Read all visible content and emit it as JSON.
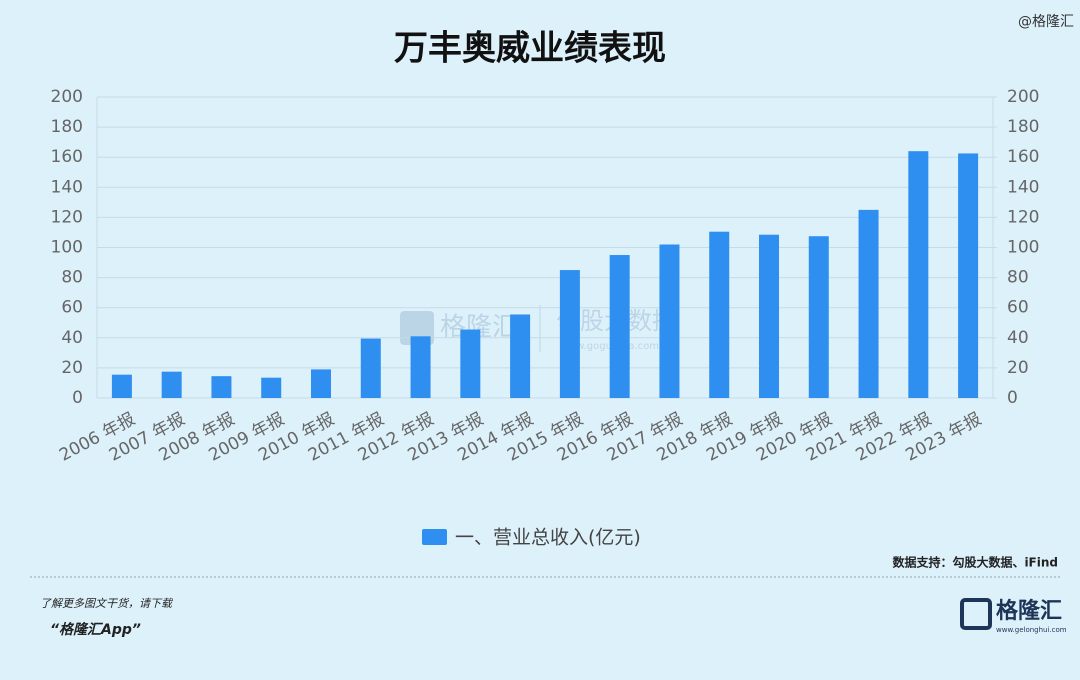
{
  "chart_data": {
    "type": "bar",
    "title": "万丰奥威业绩表现",
    "categories": [
      "2006 年报",
      "2007 年报",
      "2008 年报",
      "2009 年报",
      "2010 年报",
      "2011 年报",
      "2012 年报",
      "2013 年报",
      "2014 年报",
      "2015 年报",
      "2016 年报",
      "2017 年报",
      "2018 年报",
      "2019 年报",
      "2020 年报",
      "2021 年报",
      "2022 年报",
      "2023 年报"
    ],
    "series": [
      {
        "name": "一、营业总收入(亿元)",
        "color": "#2e8ff0",
        "values": [
          15.5,
          17.5,
          14.5,
          13.5,
          19,
          39.5,
          41,
          45.5,
          55.5,
          85,
          95,
          102,
          110.5,
          108.5,
          107.5,
          125,
          164,
          162.5
        ]
      }
    ],
    "ylim": [
      0,
      200
    ],
    "yticks": [
      0,
      20,
      40,
      60,
      80,
      100,
      120,
      140,
      160,
      180,
      200
    ],
    "y2lim": [
      0,
      200
    ],
    "y2ticks": [
      0,
      20,
      40,
      60,
      80,
      100,
      120,
      140,
      160,
      180,
      200
    ],
    "grid": true,
    "legend": "bottom"
  },
  "header": {
    "watermark": "@格隆汇"
  },
  "watermark": {
    "brand": "格隆汇",
    "product": "勾股大数据",
    "url": "www.gogudata.com"
  },
  "footer": {
    "source": "数据支持：勾股大数据、iFind",
    "promo": "了解更多图文干货，请下载",
    "app": "“格隆汇App”",
    "logo": "格隆汇",
    "site": "www.gelonghui.com"
  }
}
